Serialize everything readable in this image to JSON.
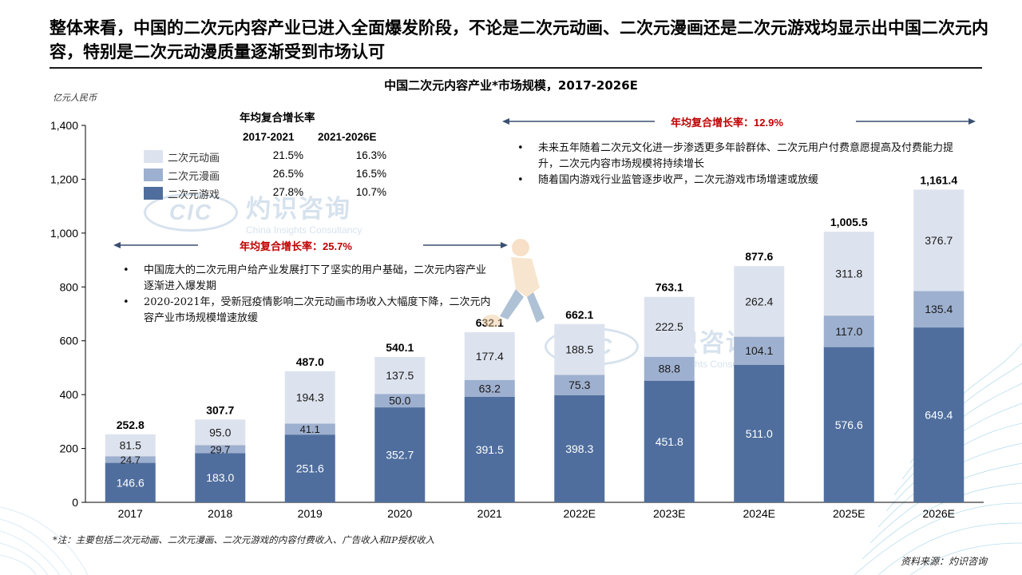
{
  "headline": "整体来看，中国的二次元内容产业已进入全面爆发阶段，不论是二次元动画、二次元漫画还是二次元游戏均显示出中国二次元内容，特别是二次元动漫质量逐渐受到市场认可",
  "chart_title": "中国二次元内容产业*市场规模，2017-2026E",
  "unit": "亿元人民币",
  "colors": {
    "animation": "#dde3ee",
    "comics": "#9eb0cf",
    "games": "#4f6e9d",
    "headline_rule": "#1a1a1a",
    "cagr_red": "#c00000"
  },
  "cagr_table": {
    "title": "年均复合增长率",
    "headers": [
      "2017-2021",
      "2021-2026E"
    ],
    "rows": [
      {
        "name": "二次元动画",
        "rate_2017_2021": "21.5%",
        "rate_2021_2026": "16.3%"
      },
      {
        "name": "二次元漫画",
        "rate_2017_2021": "26.5%",
        "rate_2021_2026": "16.5%"
      },
      {
        "name": "二次元游戏",
        "rate_2017_2021": "27.8%",
        "rate_2021_2026": "10.7%"
      }
    ]
  },
  "cagr_left": {
    "label": "年均复合增长率：",
    "value": "25.7%"
  },
  "cagr_right": {
    "label": "年均复合增长率：",
    "value": "12.9%"
  },
  "notes_left": [
    "中国庞大的二次元用户给产业发展打下了坚实的用户基础，二次元内容产业逐渐进入爆发期",
    "2020-2021年，受新冠疫情影响二次元动画市场收入大幅度下降，二次元内容产业市场规模增速放缓"
  ],
  "notes_right": [
    "未来五年随着二次元文化进一步渗透更多年龄群体、二次元用户付费意愿提高及付费能力提升，二次元内容市场规模将持续增长",
    "随着国内游戏行业监管逐步收严，二次元游戏市场增速或放缓"
  ],
  "watermark": {
    "logo": "CIC",
    "cn": "灼识咨询",
    "en": "China Insights Consultancy"
  },
  "footnote": "*注：主要包括二次元动画、二次元漫画、二次元游戏的内容付费收入、广告收入和IP授权收入",
  "source": "资料来源：灼识咨询",
  "chart_data": {
    "type": "bar",
    "stacked": true,
    "title": "中国二次元内容产业*市场规模，2017-2026E",
    "ylabel": "亿元人民币",
    "ylim": [
      0,
      1400
    ],
    "yticks": [
      0,
      200,
      400,
      600,
      800,
      1000,
      1200,
      1400
    ],
    "ytick_labels": [
      "0",
      "200",
      "400",
      "600",
      "800",
      "1,000",
      "1,200",
      "1,400"
    ],
    "grid": false,
    "categories": [
      "2017",
      "2018",
      "2019",
      "2020",
      "2021",
      "2022E",
      "2023E",
      "2024E",
      "2025E",
      "2026E"
    ],
    "series": [
      {
        "name": "二次元游戏",
        "color": "#4f6e9d",
        "values": [
          146.6,
          183.0,
          251.6,
          352.7,
          391.5,
          398.3,
          451.8,
          511.0,
          576.6,
          649.4
        ],
        "labels": [
          "146.6",
          "183.0",
          "251.6",
          "352.7",
          "391.5",
          "398.3",
          "451.8",
          "511.0",
          "576.6",
          "649.4"
        ]
      },
      {
        "name": "二次元漫画",
        "color": "#9eb0cf",
        "values": [
          24.7,
          29.7,
          41.1,
          50.0,
          63.2,
          75.3,
          88.8,
          104.1,
          117.0,
          135.4
        ],
        "labels": [
          "24.7",
          "29.7",
          "41.1",
          "50.0",
          "63.2",
          "75.3",
          "88.8",
          "104.1",
          "117.0",
          "135.4"
        ]
      },
      {
        "name": "二次元动画",
        "color": "#dde3ee",
        "values": [
          81.5,
          95.0,
          194.3,
          137.5,
          177.4,
          188.5,
          222.5,
          262.4,
          311.8,
          376.7
        ],
        "labels": [
          "81.5",
          "95.0",
          "194.3",
          "137.5",
          "177.4",
          "188.5",
          "222.5",
          "262.4",
          "311.8",
          "376.7"
        ]
      }
    ],
    "totals": [
      252.8,
      307.7,
      487.0,
      540.1,
      632.1,
      662.1,
      763.1,
      877.6,
      1005.5,
      1161.4
    ],
    "total_labels": [
      "252.8",
      "307.7",
      "487.0",
      "540.1",
      "632.1",
      "662.1",
      "763.1",
      "877.6",
      "1,005.5",
      "1,161.4"
    ]
  }
}
